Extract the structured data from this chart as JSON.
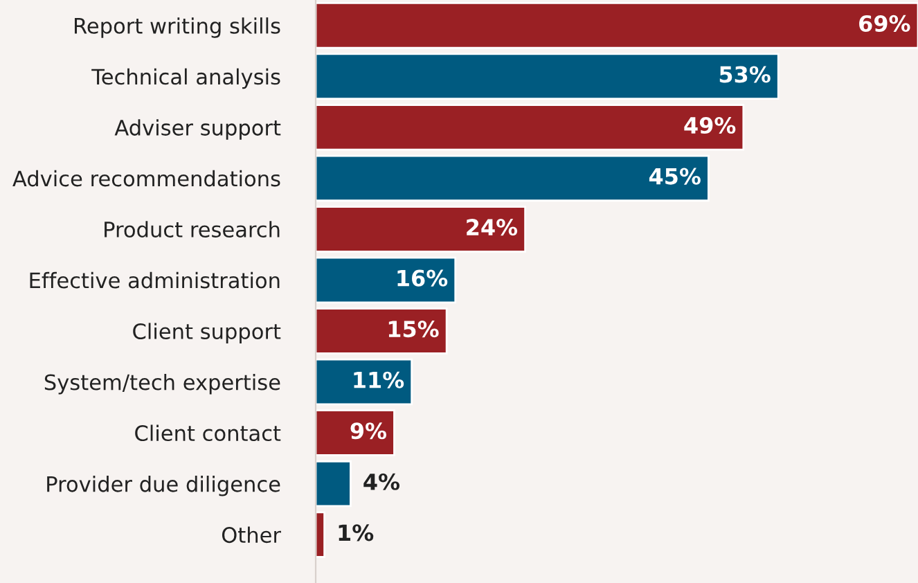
{
  "chart_data": {
    "type": "bar",
    "orientation": "horizontal",
    "categories": [
      "Report writing skills",
      "Technical analysis",
      "Adviser support",
      "Advice recommendations",
      "Product research",
      "Effective administration",
      "Client support",
      "System/tech expertise",
      "Client contact",
      "Provider due diligence",
      "Other"
    ],
    "values": [
      69,
      53,
      49,
      45,
      24,
      16,
      15,
      11,
      9,
      4,
      1
    ],
    "value_labels": [
      "69%",
      "53%",
      "49%",
      "45%",
      "24%",
      "16%",
      "15%",
      "11%",
      "9%",
      "4%",
      "1%"
    ],
    "colors": [
      "#9a2024",
      "#005a80",
      "#9a2024",
      "#005a80",
      "#9a2024",
      "#005a80",
      "#9a2024",
      "#005a80",
      "#9a2024",
      "#005a80",
      "#9a2024"
    ]
  }
}
